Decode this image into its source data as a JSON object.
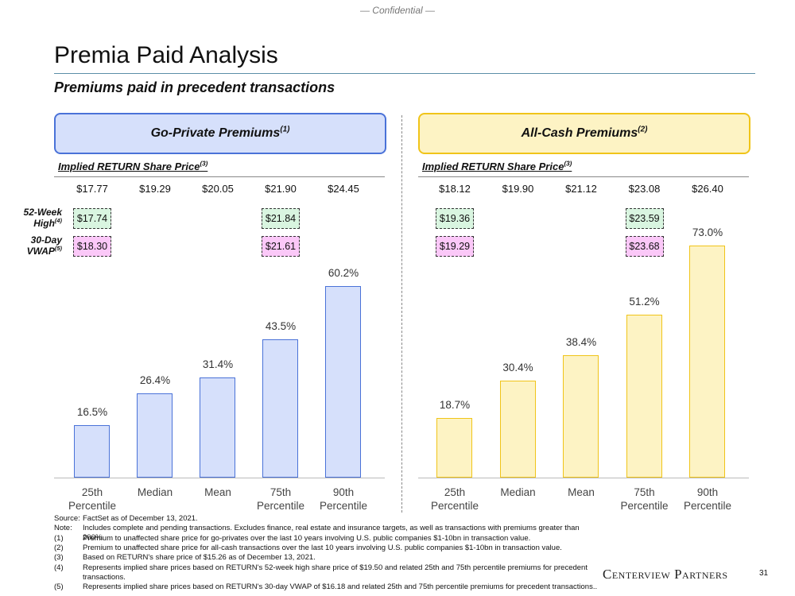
{
  "confidential": "— Confidential —",
  "title": "Premia Paid Analysis",
  "subtitle": "Premiums paid in precedent transactions",
  "row_labels": {
    "high": "52-Week High",
    "high_note": "(4)",
    "vwap": "30-Day VWAP",
    "vwap_note": "(5)"
  },
  "chart_data": [
    {
      "type": "bar",
      "title": "Go-Private Premiums",
      "title_note": "(1)",
      "price_header": "Implied RETURN Share Price",
      "price_header_note": "(3)",
      "prices": [
        "$17.77",
        "$19.29",
        "$20.05",
        "$21.90",
        "$24.45"
      ],
      "high_52wk": [
        "$17.74",
        null,
        null,
        "$21.84",
        null
      ],
      "vwap_30day": [
        "$18.30",
        null,
        null,
        "$21.61",
        null
      ],
      "categories": [
        "25th Percentile",
        "Median",
        "Mean",
        "75th Percentile",
        "90th Percentile"
      ],
      "values": [
        16.5,
        26.4,
        31.4,
        43.5,
        60.2
      ],
      "value_labels": [
        "16.5%",
        "26.4%",
        "31.4%",
        "43.5%",
        "60.2%"
      ],
      "color": "#d6e0fb",
      "edge_color": "#4a72d8"
    },
    {
      "type": "bar",
      "title": "All-Cash Premiums",
      "title_note": "(2)",
      "price_header": "Implied RETURN Share Price",
      "price_header_note": "(3)",
      "prices": [
        "$18.12",
        "$19.90",
        "$21.12",
        "$23.08",
        "$26.40"
      ],
      "high_52wk": [
        "$19.36",
        null,
        null,
        "$23.59",
        null
      ],
      "vwap_30day": [
        "$19.29",
        null,
        null,
        "$23.68",
        null
      ],
      "categories": [
        "25th Percentile",
        "Median",
        "Mean",
        "75th Percentile",
        "90th Percentile"
      ],
      "values": [
        18.7,
        30.4,
        38.4,
        51.2,
        73.0
      ],
      "value_labels": [
        "18.7%",
        "30.4%",
        "38.4%",
        "51.2%",
        "73.0%"
      ],
      "color": "#fdf3c4",
      "edge_color": "#f0c419"
    }
  ],
  "high_color": "#d9f5e0",
  "vwap_color": "#fbc8f8",
  "footnotes": [
    {
      "marker": "Source:",
      "text": "FactSet as of December 13, 2021."
    },
    {
      "marker": "Note:",
      "text": "Includes complete and pending transactions. Excludes finance, real estate and insurance targets, as well as transactions with premiums greater than 200%."
    },
    {
      "marker": "(1)",
      "text": "Premium to unaffected share price for go-privates over the last 10 years involving U.S. public companies $1-10bn in transaction value."
    },
    {
      "marker": "(2)",
      "text": "Premium to unaffected share price for all-cash transactions over the last 10 years involving U.S. public companies $1-10bn in transaction value."
    },
    {
      "marker": "(3)",
      "text": "Based on RETURN's share price of $15.26 as of December 13, 2021."
    },
    {
      "marker": "(4)",
      "text": "Represents implied share prices based on RETURN's 52-week high share price of $19.50 and related 25th and 75th percentile premiums for precedent transactions."
    },
    {
      "marker": "(5)",
      "text": "Represents implied share prices based on RETURN's 30-day VWAP of $16.18 and related 25th and 75th percentile premiums for precedent transactions.."
    }
  ],
  "logo": "Centerview Partners",
  "page_number": "31"
}
